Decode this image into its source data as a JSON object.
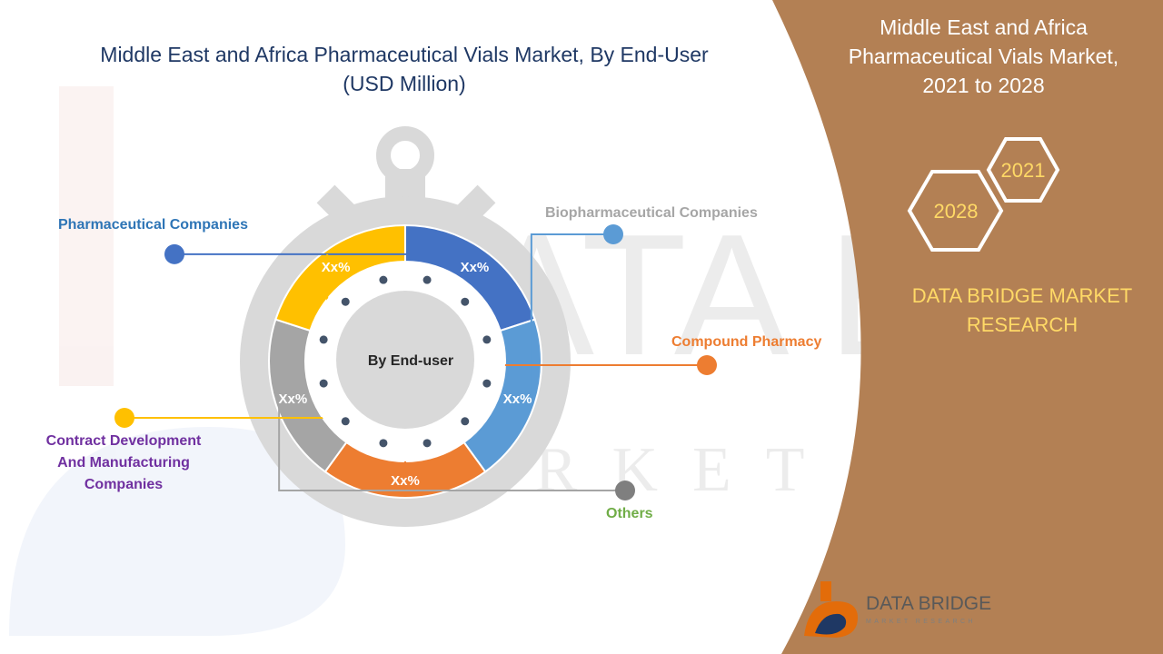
{
  "header": {
    "title_line1": "Middle East and Africa Pharmaceutical Vials Market, By End-User",
    "title_line2": "(USD Million)"
  },
  "sidebar": {
    "title_line1": "Middle East and Africa",
    "title_line2": "Pharmaceutical Vials Market,",
    "title_line3": "2021 to 2028",
    "year_start": "2021",
    "year_end": "2028",
    "brand_line1": "DATA BRIDGE MARKET",
    "brand_line2": "RESEARCH"
  },
  "logo": {
    "name": "DATA BRIDGE",
    "tagline": "MARKET RESEARCH"
  },
  "watermark": {
    "text_main": "DATA BRIDGE",
    "text_sub": "MARKET RESEARCH"
  },
  "colors": {
    "sidebar": "#b38054",
    "title": "#1f3864",
    "accent_year": "#ffd966"
  },
  "chart_data": {
    "type": "pie",
    "style": "donut",
    "center_label": "By End-user",
    "categories": [
      "Pharmaceutical Companies",
      "Biopharmaceutical Companies",
      "Compound Pharmacy",
      "Others",
      "Contract Development And Manufacturing Companies"
    ],
    "values": [
      1,
      1,
      1,
      1,
      1
    ],
    "value_labels": [
      "Xx%",
      "Xx%",
      "Xx%",
      "Xx%",
      "Xx%"
    ],
    "colors": [
      "#4472c4",
      "#5b9bd5",
      "#ed7d31",
      "#a5a5a5",
      "#ffc000"
    ],
    "label_colors": [
      "#2e75b6",
      "#a6a6a6",
      "#ed7d31",
      "#70ad47",
      "#7030a0"
    ]
  }
}
